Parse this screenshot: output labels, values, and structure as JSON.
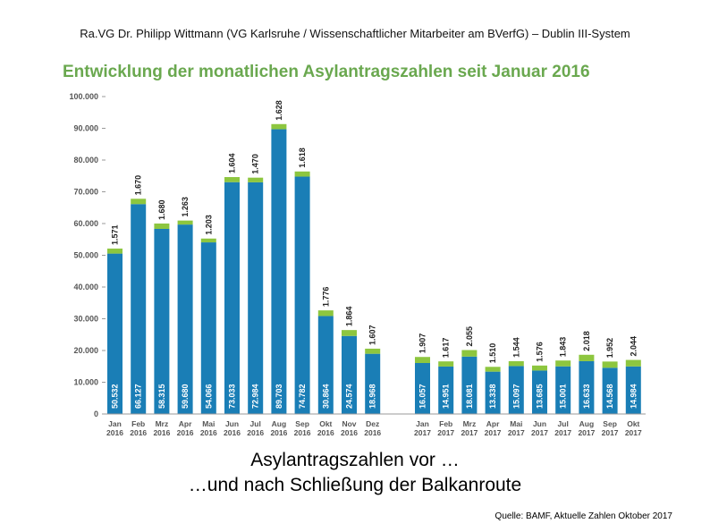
{
  "slide": {
    "header": "Ra.VG Dr. Philipp Wittmann (VG Karlsruhe / Wissenschaftlicher Mitarbeiter am BVerfG) – Dublin III-System",
    "caption_line1": "Asylantragszahlen vor …",
    "caption_line2": "…und nach Schließung der Balkanroute",
    "source": "Quelle: BAMF, Aktuelle Zahlen Oktober 2017"
  },
  "colors": {
    "bar": "#1a7eb6",
    "top": "#8dc63f",
    "title": "#6aa84f",
    "axis": "#555555"
  },
  "chart_data": {
    "type": "bar",
    "stacked": true,
    "title": "Entwicklung der monatlichen Asylantragszahlen seit Januar 2016",
    "ylim": [
      0,
      100000
    ],
    "yticks": [
      "0",
      "10.000",
      "20.000",
      "30.000",
      "40.000",
      "50.000",
      "60.000",
      "70.000",
      "80.000",
      "90.000",
      "100.000"
    ],
    "groups": [
      {
        "year": "2016",
        "months": [
          "Jan",
          "Feb",
          "Mrz",
          "Apr",
          "Mai",
          "Jun",
          "Jul",
          "Aug",
          "Sep",
          "Okt",
          "Nov",
          "Dez"
        ],
        "base_values": [
          50532,
          66127,
          58315,
          59680,
          54066,
          73033,
          72984,
          89703,
          74782,
          30864,
          24574,
          18968
        ],
        "base_labels": [
          "50.532",
          "66.127",
          "58.315",
          "59.680",
          "54.066",
          "73.033",
          "72.984",
          "89.703",
          "74.782",
          "30.864",
          "24.574",
          "18.968"
        ],
        "top_values": [
          1571,
          1670,
          1680,
          1263,
          1203,
          1604,
          1470,
          1628,
          1618,
          1776,
          1864,
          1607
        ],
        "top_labels": [
          "1.571",
          "1.670",
          "1.680",
          "1.263",
          "1.203",
          "1.604",
          "1.470",
          "1.628",
          "1.618",
          "1.776",
          "1.864",
          "1.607"
        ]
      },
      {
        "year": "2017",
        "months": [
          "Jan",
          "Feb",
          "Mrz",
          "Apr",
          "Mai",
          "Jun",
          "Jul",
          "Aug",
          "Sep",
          "Okt"
        ],
        "base_values": [
          16057,
          14951,
          18081,
          13338,
          15097,
          13685,
          15001,
          16633,
          14568,
          14984
        ],
        "base_labels": [
          "16.057",
          "14.951",
          "18.081",
          "13.338",
          "15.097",
          "13.685",
          "15.001",
          "16.633",
          "14.568",
          "14.984"
        ],
        "top_values": [
          1907,
          1617,
          2055,
          1510,
          1544,
          1576,
          1843,
          2018,
          1952,
          2044
        ],
        "top_labels": [
          "1.907",
          "1.617",
          "2.055",
          "1.510",
          "1.544",
          "1.576",
          "1.843",
          "2.018",
          "1.952",
          "2.044"
        ]
      }
    ]
  }
}
